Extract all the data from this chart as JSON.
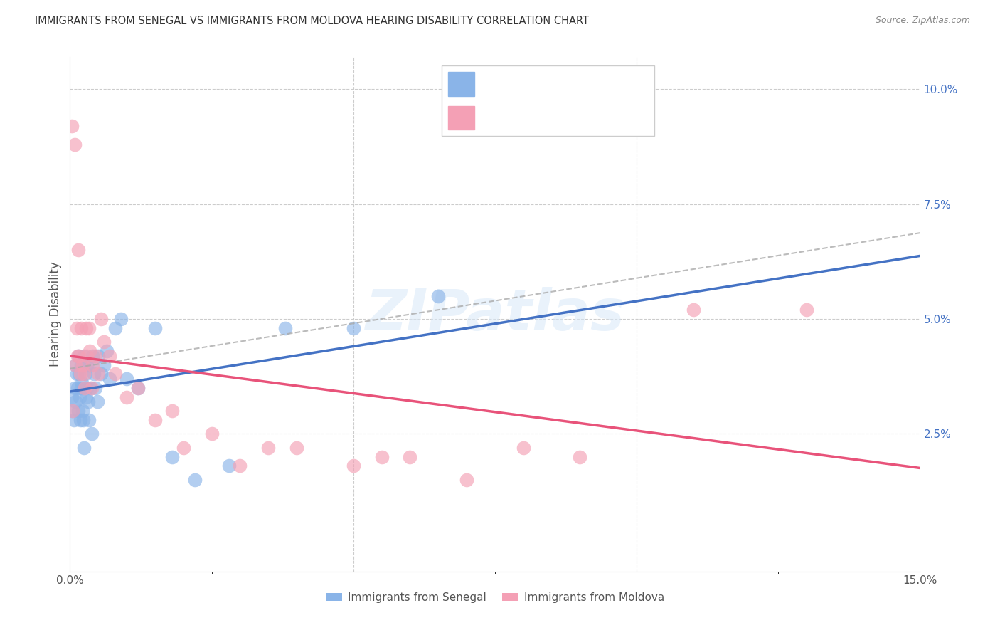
{
  "title": "IMMIGRANTS FROM SENEGAL VS IMMIGRANTS FROM MOLDOVA HEARING DISABILITY CORRELATION CHART",
  "source": "Source: ZipAtlas.com",
  "ylabel": "Hearing Disability",
  "xlim": [
    0.0,
    0.15
  ],
  "ylim": [
    -0.005,
    0.107
  ],
  "color_senegal": "#8ab4e8",
  "color_moldova": "#f4a0b5",
  "color_senegal_line": "#4472c4",
  "color_moldova_line": "#e8537a",
  "color_dashed": "#aaaaaa",
  "senegal_x": [
    0.0003,
    0.0005,
    0.0007,
    0.0008,
    0.001,
    0.001,
    0.0012,
    0.0013,
    0.0014,
    0.0015,
    0.0016,
    0.0017,
    0.0018,
    0.0019,
    0.002,
    0.0021,
    0.0022,
    0.0023,
    0.0024,
    0.0025,
    0.0027,
    0.0028,
    0.003,
    0.003,
    0.0032,
    0.0033,
    0.0035,
    0.0036,
    0.0038,
    0.004,
    0.0042,
    0.0045,
    0.0048,
    0.005,
    0.0055,
    0.006,
    0.0065,
    0.007,
    0.008,
    0.009,
    0.01,
    0.012,
    0.015,
    0.018,
    0.022,
    0.028,
    0.038,
    0.05,
    0.065
  ],
  "senegal_y": [
    0.033,
    0.03,
    0.028,
    0.035,
    0.04,
    0.032,
    0.038,
    0.035,
    0.03,
    0.042,
    0.038,
    0.033,
    0.028,
    0.035,
    0.04,
    0.036,
    0.03,
    0.028,
    0.022,
    0.042,
    0.038,
    0.033,
    0.04,
    0.035,
    0.032,
    0.028,
    0.04,
    0.035,
    0.025,
    0.042,
    0.038,
    0.035,
    0.032,
    0.042,
    0.038,
    0.04,
    0.043,
    0.037,
    0.048,
    0.05,
    0.037,
    0.035,
    0.048,
    0.02,
    0.015,
    0.018,
    0.048,
    0.048,
    0.055
  ],
  "moldova_x": [
    0.0003,
    0.0005,
    0.0008,
    0.001,
    0.0012,
    0.0013,
    0.0015,
    0.0016,
    0.0018,
    0.002,
    0.0022,
    0.0024,
    0.0026,
    0.0028,
    0.003,
    0.0033,
    0.0035,
    0.0038,
    0.004,
    0.0045,
    0.005,
    0.0055,
    0.006,
    0.007,
    0.008,
    0.01,
    0.012,
    0.015,
    0.018,
    0.02,
    0.025,
    0.03,
    0.035,
    0.04,
    0.05,
    0.055,
    0.06,
    0.07,
    0.08,
    0.09,
    0.11,
    0.13
  ],
  "moldova_y": [
    0.092,
    0.03,
    0.088,
    0.04,
    0.048,
    0.042,
    0.065,
    0.042,
    0.038,
    0.048,
    0.04,
    0.038,
    0.035,
    0.048,
    0.042,
    0.048,
    0.043,
    0.035,
    0.04,
    0.042,
    0.038,
    0.05,
    0.045,
    0.042,
    0.038,
    0.033,
    0.035,
    0.028,
    0.03,
    0.022,
    0.025,
    0.018,
    0.022,
    0.022,
    0.018,
    0.02,
    0.02,
    0.015,
    0.022,
    0.02,
    0.052,
    0.052
  ]
}
